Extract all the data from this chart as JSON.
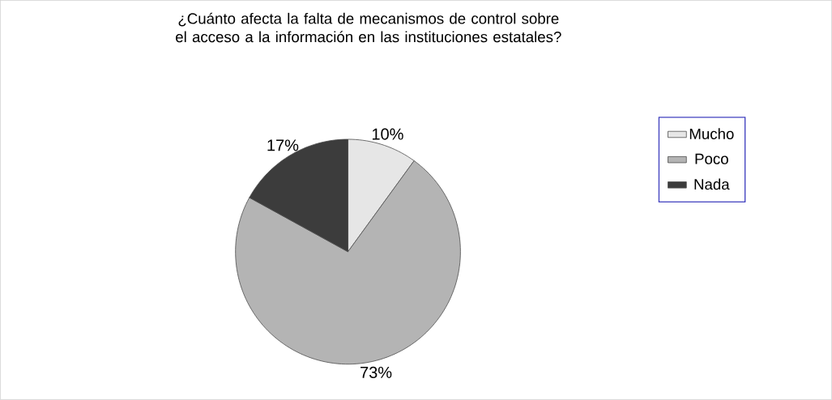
{
  "chart_data": {
    "type": "pie",
    "title": "¿Cuánto afecta la falta de mecanismos de control sobre el acceso a la información en las instituciones estatales?",
    "categories": [
      "Mucho",
      "Poco",
      "Nada"
    ],
    "values": [
      10,
      73,
      17
    ],
    "value_labels": [
      "10%",
      "73%",
      "17%"
    ],
    "colors": [
      "#e6e6e6",
      "#b4b4b4",
      "#3c3c3c"
    ],
    "legend": "right"
  }
}
